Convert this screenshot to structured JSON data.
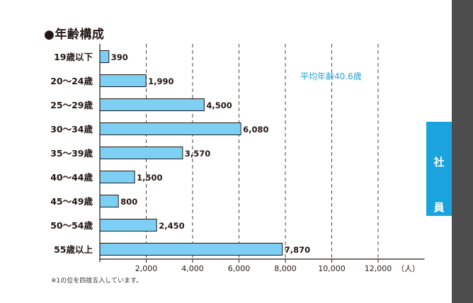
{
  "heading": "●年齢構成",
  "average_note": "平均年齢40.6歳",
  "footnote": "※1の位を四捨五入しています。",
  "side_tab": {
    "char1": "社",
    "char2": "員"
  },
  "colors": {
    "bar_fill": "#7dd0f4",
    "bar_stroke": "#231815",
    "accent": "#1aa3dd",
    "side_bar": "#4d4d4d"
  },
  "chart_data": {
    "type": "bar",
    "orientation": "horizontal",
    "title": "●年齢構成",
    "categories": [
      "19歳以下",
      "20〜24歳",
      "25〜29歳",
      "30〜34歳",
      "35〜39歳",
      "40〜44歳",
      "45〜49歳",
      "50〜54歳",
      "55歳以上"
    ],
    "values": [
      390,
      1990,
      4500,
      6080,
      3570,
      1500,
      800,
      2450,
      7870
    ],
    "value_labels": [
      "390",
      "1,990",
      "4,500",
      "6,080",
      "3,570",
      "1,500",
      "800",
      "2,450",
      "7,870"
    ],
    "xticks": [
      2000,
      4000,
      6000,
      8000,
      10000,
      12000
    ],
    "xtick_labels": [
      "2,000",
      "4,000",
      "6,000",
      "8,000",
      "10,000",
      "12,000"
    ],
    "xunit": "（人）",
    "xlim": [
      0,
      14000
    ],
    "grid": "vertical dashed",
    "legend": "none"
  }
}
